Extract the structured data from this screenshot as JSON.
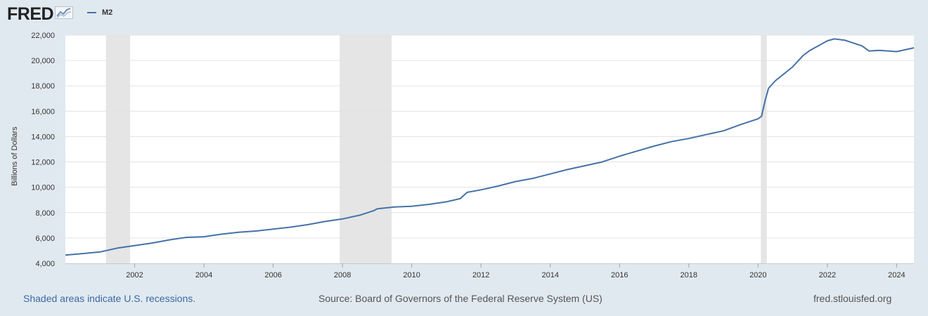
{
  "logo": {
    "text": "FRED",
    "icon": "line-chart-icon"
  },
  "legend": {
    "label": "M2",
    "color": "#4572a7"
  },
  "footer": {
    "left": "Shaded areas indicate U.S. recessions.",
    "center": "Source: Board of Governors of the Federal Reserve System (US)",
    "right": "fred.stlouisfed.org"
  },
  "chart_data": {
    "type": "line",
    "title": "",
    "xlabel": "",
    "ylabel": "Billions of Dollars",
    "xlim": [
      2000.0,
      2024.5
    ],
    "ylim": [
      4000,
      22000
    ],
    "yticks": [
      4000,
      6000,
      8000,
      10000,
      12000,
      14000,
      16000,
      18000,
      20000,
      22000
    ],
    "ytick_labels": [
      "4,000",
      "6,000",
      "8,000",
      "10,000",
      "12,000",
      "14,000",
      "16,000",
      "18,000",
      "20,000",
      "22,000"
    ],
    "xticks": [
      2002,
      2004,
      2006,
      2008,
      2010,
      2012,
      2014,
      2016,
      2018,
      2020,
      2022,
      2024
    ],
    "xtick_labels": [
      "2002",
      "2004",
      "2006",
      "2008",
      "2010",
      "2012",
      "2014",
      "2016",
      "2018",
      "2020",
      "2022",
      "2024"
    ],
    "recessions": [
      {
        "start": 2001.17,
        "end": 2001.87
      },
      {
        "start": 2007.92,
        "end": 2009.42
      },
      {
        "start": 2020.08,
        "end": 2020.25
      }
    ],
    "series": [
      {
        "name": "M2",
        "color": "#4572a7",
        "x": [
          2000.0,
          2000.5,
          2001.0,
          2001.5,
          2002.0,
          2002.5,
          2003.0,
          2003.5,
          2004.0,
          2004.5,
          2005.0,
          2005.5,
          2006.0,
          2006.5,
          2007.0,
          2007.5,
          2008.0,
          2008.5,
          2008.9,
          2009.0,
          2009.5,
          2010.0,
          2010.5,
          2011.0,
          2011.4,
          2011.6,
          2012.0,
          2012.5,
          2013.0,
          2013.5,
          2014.0,
          2014.5,
          2015.0,
          2015.5,
          2016.0,
          2016.5,
          2017.0,
          2017.5,
          2018.0,
          2018.5,
          2019.0,
          2019.5,
          2020.0,
          2020.1,
          2020.2,
          2020.3,
          2020.5,
          2021.0,
          2021.3,
          2021.5,
          2022.0,
          2022.2,
          2022.5,
          2023.0,
          2023.2,
          2023.5,
          2024.0,
          2024.5
        ],
        "y": [
          4650,
          4770,
          4900,
          5200,
          5400,
          5600,
          5850,
          6050,
          6100,
          6300,
          6450,
          6550,
          6700,
          6850,
          7050,
          7300,
          7500,
          7800,
          8150,
          8300,
          8450,
          8500,
          8650,
          8850,
          9100,
          9600,
          9800,
          10100,
          10450,
          10700,
          11050,
          11400,
          11700,
          12000,
          12450,
          12850,
          13250,
          13600,
          13850,
          14150,
          14450,
          14950,
          15400,
          15600,
          16800,
          17800,
          18400,
          19500,
          20400,
          20800,
          21550,
          21700,
          21600,
          21150,
          20750,
          20800,
          20700,
          21000
        ]
      }
    ]
  }
}
